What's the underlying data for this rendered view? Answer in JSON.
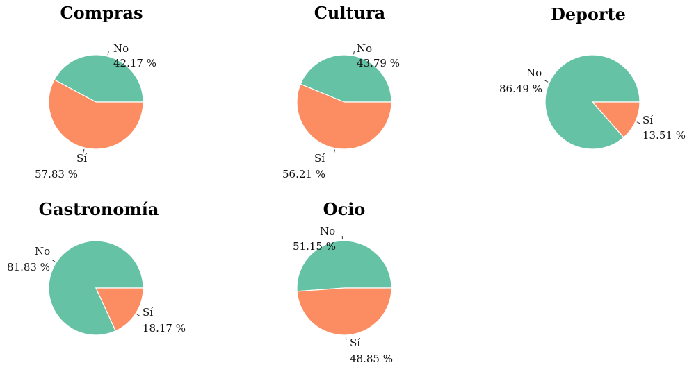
{
  "colors": {
    "no": "#66c2a5",
    "si": "#fc8d62",
    "background": "#ffffff"
  },
  "chart_data": [
    {
      "type": "pie",
      "title": "Compras",
      "slices": [
        {
          "label": "No",
          "value": 42.17,
          "value_text": "42.17 %",
          "color": "#66c2a5"
        },
        {
          "label": "Sí",
          "value": 57.83,
          "value_text": "57.83 %",
          "color": "#fc8d62"
        }
      ]
    },
    {
      "type": "pie",
      "title": "Cultura",
      "slices": [
        {
          "label": "No",
          "value": 43.79,
          "value_text": "43.79 %",
          "color": "#66c2a5"
        },
        {
          "label": "Sí",
          "value": 56.21,
          "value_text": "56.21 %",
          "color": "#fc8d62"
        }
      ]
    },
    {
      "type": "pie",
      "title": "Deporte",
      "slices": [
        {
          "label": "No",
          "value": 86.49,
          "value_text": "86.49 %",
          "color": "#66c2a5"
        },
        {
          "label": "Sí",
          "value": 13.51,
          "value_text": "13.51 %",
          "color": "#fc8d62"
        }
      ]
    },
    {
      "type": "pie",
      "title": "Gastronomía",
      "slices": [
        {
          "label": "No",
          "value": 81.83,
          "value_text": "81.83 %",
          "color": "#66c2a5"
        },
        {
          "label": "Sí",
          "value": 18.17,
          "value_text": "18.17 %",
          "color": "#fc8d62"
        }
      ]
    },
    {
      "type": "pie",
      "title": "Ocio",
      "slices": [
        {
          "label": "No",
          "value": 51.15,
          "value_text": "51.15 %",
          "color": "#66c2a5"
        },
        {
          "label": "Sí",
          "value": 48.85,
          "value_text": "48.85 %",
          "color": "#fc8d62"
        }
      ]
    }
  ]
}
